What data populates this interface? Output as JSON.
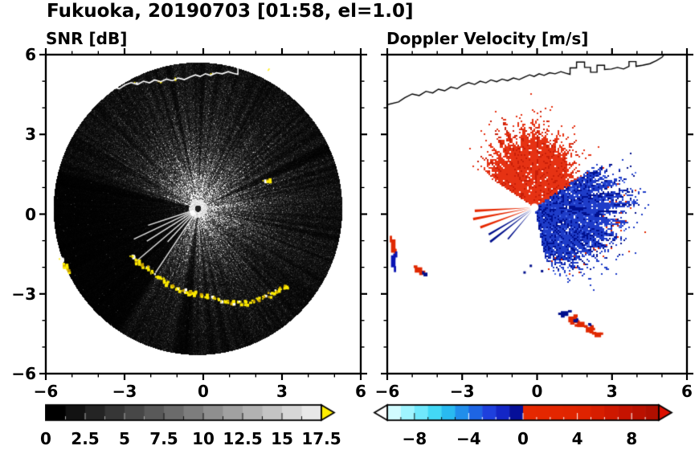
{
  "title": "Fukuoka, 20190703 [01:58, el=1.0]",
  "scan_info": {
    "site": "Fukuoka",
    "date": "20190703",
    "time": "01:58",
    "elevation": "1.0"
  },
  "coastline": [
    [
      -6.0,
      4.12
    ],
    [
      -5.55,
      4.22
    ],
    [
      -5.3,
      4.38
    ],
    [
      -5.0,
      4.52
    ],
    [
      -4.72,
      4.46
    ],
    [
      -4.45,
      4.62
    ],
    [
      -4.18,
      4.56
    ],
    [
      -3.95,
      4.7
    ],
    [
      -3.7,
      4.64
    ],
    [
      -3.45,
      4.78
    ],
    [
      -3.2,
      4.72
    ],
    [
      -3.0,
      4.85
    ],
    [
      -2.75,
      4.95
    ],
    [
      -2.5,
      4.88
    ],
    [
      -2.28,
      5.0
    ],
    [
      -2.05,
      4.94
    ],
    [
      -1.85,
      5.05
    ],
    [
      -1.62,
      4.98
    ],
    [
      -1.4,
      5.08
    ],
    [
      -1.18,
      5.02
    ],
    [
      -0.95,
      5.12
    ],
    [
      -0.72,
      5.06
    ],
    [
      -0.5,
      5.16
    ],
    [
      -0.3,
      5.24
    ],
    [
      -0.12,
      5.18
    ],
    [
      0.08,
      5.28
    ],
    [
      0.28,
      5.22
    ],
    [
      0.5,
      5.32
    ],
    [
      0.72,
      5.28
    ],
    [
      0.95,
      5.36
    ],
    [
      1.15,
      5.3
    ],
    [
      1.32,
      5.26
    ],
    [
      1.32,
      5.5
    ],
    [
      1.58,
      5.5
    ],
    [
      1.58,
      5.72
    ],
    [
      1.9,
      5.72
    ],
    [
      1.9,
      5.52
    ],
    [
      2.14,
      5.52
    ],
    [
      2.14,
      5.34
    ],
    [
      2.4,
      5.34
    ],
    [
      2.4,
      5.6
    ],
    [
      2.7,
      5.6
    ],
    [
      2.7,
      5.44
    ],
    [
      2.98,
      5.46
    ],
    [
      3.22,
      5.52
    ],
    [
      3.46,
      5.46
    ],
    [
      3.68,
      5.56
    ],
    [
      3.68,
      5.74
    ],
    [
      3.96,
      5.74
    ],
    [
      3.96,
      5.56
    ],
    [
      4.22,
      5.6
    ],
    [
      4.52,
      5.66
    ],
    [
      4.78,
      5.78
    ],
    [
      5.0,
      5.9
    ],
    [
      5.12,
      6.05
    ]
  ],
  "chart_data": [
    {
      "type": "heatmap",
      "id": "snr",
      "title": "SNR [dB]",
      "xlim": [
        -6,
        6
      ],
      "ylim": [
        -6,
        6
      ],
      "xticks": [
        -6,
        -3,
        0,
        3,
        6
      ],
      "yticks": [
        6,
        3,
        0,
        -3,
        -6
      ],
      "minor_ticks": [
        -5,
        -4,
        -2,
        -1,
        1,
        2,
        4,
        5
      ],
      "xtick_labels": [
        "−6",
        "−3",
        "0",
        "3",
        "6"
      ],
      "ytick_labels": [
        "6",
        "3",
        "0",
        "−3",
        "−6"
      ],
      "show_ytick_labels": true,
      "colorbar": {
        "min": 0,
        "max": 17.5,
        "step": 1.25,
        "values": [
          0,
          2.5,
          5,
          7.5,
          10,
          12.5,
          15,
          17.5
        ],
        "labels": [
          "0",
          "2.5",
          "5",
          "7.5",
          "10",
          "12.5",
          "15",
          "17.5"
        ],
        "start_color": "#000000",
        "end_color": "#e8e8e8",
        "over_color": "#ffee00"
      },
      "radar_center": [
        -0.2,
        0.2
      ],
      "scan_radius": 5.5,
      "blocked_sectors": [
        [
          150,
          163,
          0.55
        ],
        [
          163,
          238,
          0.15
        ],
        [
          23,
          26.5,
          0.22
        ],
        [
          262,
          266,
          0.3
        ]
      ],
      "bright_rays": [
        [
          198,
          2.0
        ],
        [
          205,
          2.7
        ],
        [
          212,
          2.3
        ],
        [
          220,
          3.1
        ],
        [
          227,
          1.7
        ],
        [
          236,
          2.9
        ]
      ],
      "clutter_color": "#ffeb00",
      "clutter_arc": [
        [
          -2.75,
          -1.6
        ],
        [
          -2.55,
          -1.75
        ],
        [
          -2.35,
          -1.9
        ],
        [
          -2.15,
          -2.0
        ],
        [
          -1.95,
          -2.15
        ],
        [
          -1.78,
          -2.3
        ],
        [
          -1.6,
          -2.45
        ],
        [
          -1.42,
          -2.58
        ],
        [
          -1.22,
          -2.68
        ],
        [
          -1.0,
          -2.78
        ],
        [
          -0.78,
          -2.85
        ],
        [
          -0.55,
          -2.9
        ],
        [
          -0.32,
          -2.95
        ],
        [
          -0.1,
          -3.0
        ],
        [
          0.12,
          -3.06
        ],
        [
          0.35,
          -3.12
        ],
        [
          0.6,
          -3.2
        ],
        [
          0.85,
          -3.28
        ],
        [
          1.1,
          -3.3
        ],
        [
          1.35,
          -3.32
        ],
        [
          1.6,
          -3.3
        ],
        [
          1.82,
          -3.25
        ],
        [
          2.05,
          -3.18
        ],
        [
          2.28,
          -3.1
        ],
        [
          2.5,
          -3.0
        ],
        [
          2.72,
          -2.9
        ],
        [
          2.92,
          -2.8
        ],
        [
          3.1,
          -2.7
        ]
      ],
      "clutter_left": [
        [
          -5.45,
          -1.7
        ],
        [
          -5.3,
          -1.9
        ],
        [
          -5.15,
          -2.1
        ]
      ],
      "clutter_spots": [
        [
          2.3,
          1.25
        ],
        [
          2.45,
          1.32
        ]
      ],
      "coast_clutter": [
        [
          -2.6,
          4.95
        ],
        [
          -1.7,
          5.05
        ],
        [
          -1.1,
          5.12
        ],
        [
          0.3,
          5.3
        ],
        [
          2.5,
          5.45
        ]
      ],
      "coastline_color": "#ffffff"
    },
    {
      "type": "heatmap",
      "id": "velocity",
      "title": "Doppler Velocity [m/s]",
      "xlim": [
        -6,
        6
      ],
      "ylim": [
        -6,
        6
      ],
      "xticks": [
        -6,
        -3,
        0,
        3,
        6
      ],
      "yticks": [
        6,
        3,
        0,
        -3,
        -6
      ],
      "minor_ticks": [
        -5,
        -4,
        -2,
        -1,
        1,
        2,
        4,
        5
      ],
      "xtick_labels": [
        "−6",
        "−3",
        "0",
        "3",
        "6"
      ],
      "ytick_labels": [
        "6",
        "3",
        "0",
        "−3",
        "−6"
      ],
      "show_ytick_labels": false,
      "colorbar": {
        "min": -10,
        "max": 10,
        "step": 1,
        "values": [
          -8,
          -4,
          0,
          4,
          8
        ],
        "labels": [
          "−8",
          "−4",
          "0",
          "4",
          "8"
        ],
        "stops": [
          [
            0,
            "#eaffff"
          ],
          [
            0.1,
            "#86f0ff"
          ],
          [
            0.2,
            "#2cd0f2"
          ],
          [
            0.3,
            "#1e78e8"
          ],
          [
            0.38,
            "#1e3cdc"
          ],
          [
            0.46,
            "#0a14b4"
          ],
          [
            0.497,
            "#00086e"
          ],
          [
            0.503,
            "#e62800"
          ],
          [
            0.72,
            "#e02400"
          ],
          [
            0.86,
            "#c81400"
          ],
          [
            1,
            "#aa0e00"
          ]
        ],
        "under_color": "#ffffff",
        "over_color": "#dd1000"
      },
      "radar_center": [
        -0.1,
        0.25
      ],
      "fans": [
        {
          "name": "toward-red",
          "a1": 30,
          "a2": 148,
          "r_points": [
            [
              30,
              2.0
            ],
            [
              50,
              2.5
            ],
            [
              75,
              2.95
            ],
            [
              100,
              3.0
            ],
            [
              125,
              2.75
            ],
            [
              148,
              2.3
            ]
          ],
          "colors": [
            "#e63213",
            "#c81e08"
          ],
          "seed": 11
        },
        {
          "name": "away-blue",
          "a1": -78,
          "a2": 33,
          "r_points": [
            [
              -78,
              2.3
            ],
            [
              -60,
              2.8
            ],
            [
              -45,
              3.1
            ],
            [
              -25,
              3.3
            ],
            [
              -10,
              3.5
            ],
            [
              0,
              3.6
            ],
            [
              15,
              3.4
            ],
            [
              33,
              3.0
            ]
          ],
          "colors": [
            "#1e3cc8",
            "#000f8c",
            "#4b6ce8"
          ],
          "fringe_red": "#e02800",
          "seed": 77
        }
      ],
      "rays": [
        {
          "angle": 183,
          "len": 2.4,
          "color": "#e62800"
        },
        {
          "angle": 190,
          "len": 2.5,
          "color": "#e62800"
        },
        {
          "angle": 199,
          "len": 2.3,
          "color": "#e62800"
        },
        {
          "angle": 209,
          "len": 2.1,
          "color": "#000f8c"
        },
        {
          "angle": 216,
          "len": 2.2,
          "color": "#000f8c"
        },
        {
          "angle": 228,
          "len": 1.6,
          "color": "#000f8c"
        }
      ],
      "patches": [
        {
          "x": -5.85,
          "y": -0.95,
          "w": 0.18,
          "h": 0.5,
          "color": "#e02800"
        },
        {
          "x": -5.85,
          "y": -1.55,
          "w": 0.18,
          "h": 0.45,
          "color": "#0a14b4"
        },
        {
          "x": -4.9,
          "y": -2.0,
          "w": 0.3,
          "h": 0.2,
          "color": "#e02800"
        },
        {
          "x": -4.55,
          "y": -2.2,
          "w": 0.16,
          "h": 0.14,
          "color": "#000f8c"
        },
        {
          "x": 0.95,
          "y": -3.65,
          "w": 0.3,
          "h": 0.18,
          "color": "#000f8c"
        },
        {
          "x": 1.25,
          "y": -3.85,
          "w": 0.34,
          "h": 0.22,
          "color": "#e02800"
        },
        {
          "x": 1.6,
          "y": -4.05,
          "w": 0.3,
          "h": 0.2,
          "color": "#e02800"
        },
        {
          "x": 1.95,
          "y": -4.25,
          "w": 0.3,
          "h": 0.2,
          "color": "#e02800"
        },
        {
          "x": 2.3,
          "y": -4.45,
          "w": 0.26,
          "h": 0.18,
          "color": "#e02800"
        },
        {
          "x": 1.45,
          "y": -3.95,
          "w": 0.14,
          "h": 0.12,
          "color": "#000f8c"
        },
        {
          "x": 2.05,
          "y": -4.1,
          "w": 0.12,
          "h": 0.1,
          "color": "#000f8c"
        }
      ],
      "specks": [
        [
          -0.3,
          -1.9
        ],
        [
          0.15,
          -2.1
        ],
        [
          -0.55,
          -2.15
        ]
      ],
      "speck_color": "#000f8c",
      "center_dot_color": "#ffffff",
      "coastline_color": "#000000"
    }
  ]
}
